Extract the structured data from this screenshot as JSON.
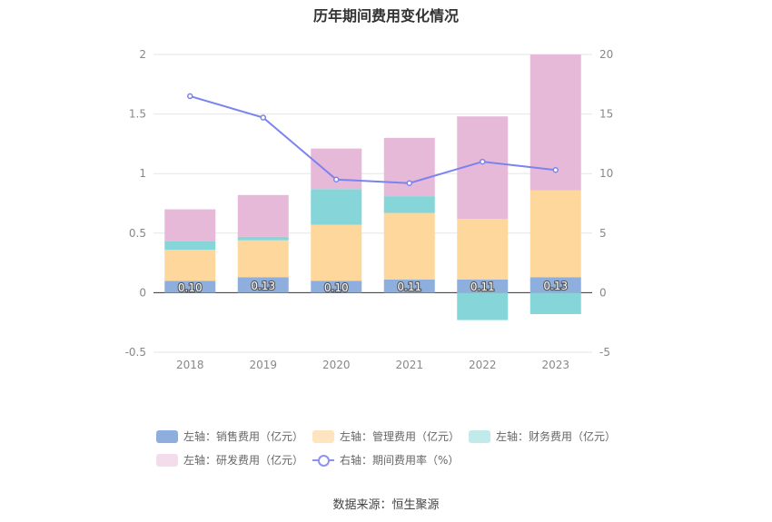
{
  "title": "历年期间费用变化情况",
  "source": "数据来源：恒生聚源",
  "colors": {
    "sales": "#8eaedd",
    "admin": "#fdd79b",
    "finance": "#86d6d9",
    "rd": "#e7b9d8",
    "ratio": "#7b83ee"
  },
  "legend": [
    {
      "label": "左轴：销售费用（亿元）",
      "color": "#8eaedd",
      "type": "bar"
    },
    {
      "label": "左轴：管理费用（亿元）",
      "color": "#fee5c0",
      "type": "bar"
    },
    {
      "label": "左轴：财务费用（亿元）",
      "color": "#c1eaeb",
      "type": "bar"
    },
    {
      "label": "左轴：研发费用（亿元）",
      "color": "#f3dcec",
      "type": "bar"
    },
    {
      "label": "右轴：期间费用率（%）",
      "color": "#8b93ee",
      "type": "line"
    }
  ],
  "chart_data": {
    "type": "bar",
    "stacked": true,
    "title": "历年期间费用变化情况",
    "categories": [
      "2018",
      "2019",
      "2020",
      "2021",
      "2022",
      "2023"
    ],
    "y_left": {
      "min": -0.5,
      "max": 2,
      "ticks": [
        "2",
        "1.5",
        "1",
        "0.5",
        "0",
        "-0.5"
      ],
      "tick_values": [
        2,
        1.5,
        1,
        0.5,
        0,
        -0.5
      ]
    },
    "y_right": {
      "min": -5,
      "max": 20,
      "ticks": [
        "20",
        "15",
        "10",
        "5",
        "0",
        "-5"
      ],
      "tick_values": [
        20,
        15,
        10,
        5,
        0,
        -5
      ]
    },
    "grid": true,
    "legend_position": "bottom",
    "series": [
      {
        "name": "左轴：销售费用（亿元）",
        "key": "sales",
        "axis": "left",
        "values": [
          0.1,
          0.13,
          0.1,
          0.11,
          0.11,
          0.13
        ],
        "labels": [
          "0.10",
          "0.13",
          "0.10",
          "0.11",
          "0.11",
          "0.13"
        ]
      },
      {
        "name": "左轴：管理费用（亿元）",
        "key": "admin",
        "axis": "left",
        "values": [
          0.26,
          0.31,
          0.47,
          0.56,
          0.51,
          0.73
        ]
      },
      {
        "name": "左轴：财务费用（亿元）",
        "key": "finance",
        "axis": "left",
        "values": [
          0.07,
          0.03,
          0.3,
          0.14,
          -0.23,
          -0.18
        ]
      },
      {
        "name": "左轴：研发费用（亿元）",
        "key": "rd",
        "axis": "left",
        "values": [
          0.27,
          0.35,
          0.34,
          0.49,
          0.86,
          1.14
        ]
      },
      {
        "name": "右轴：期间费用率（%）",
        "key": "ratio",
        "axis": "right",
        "type": "line",
        "values": [
          16.5,
          14.7,
          9.5,
          9.2,
          11.0,
          10.3
        ]
      }
    ]
  }
}
